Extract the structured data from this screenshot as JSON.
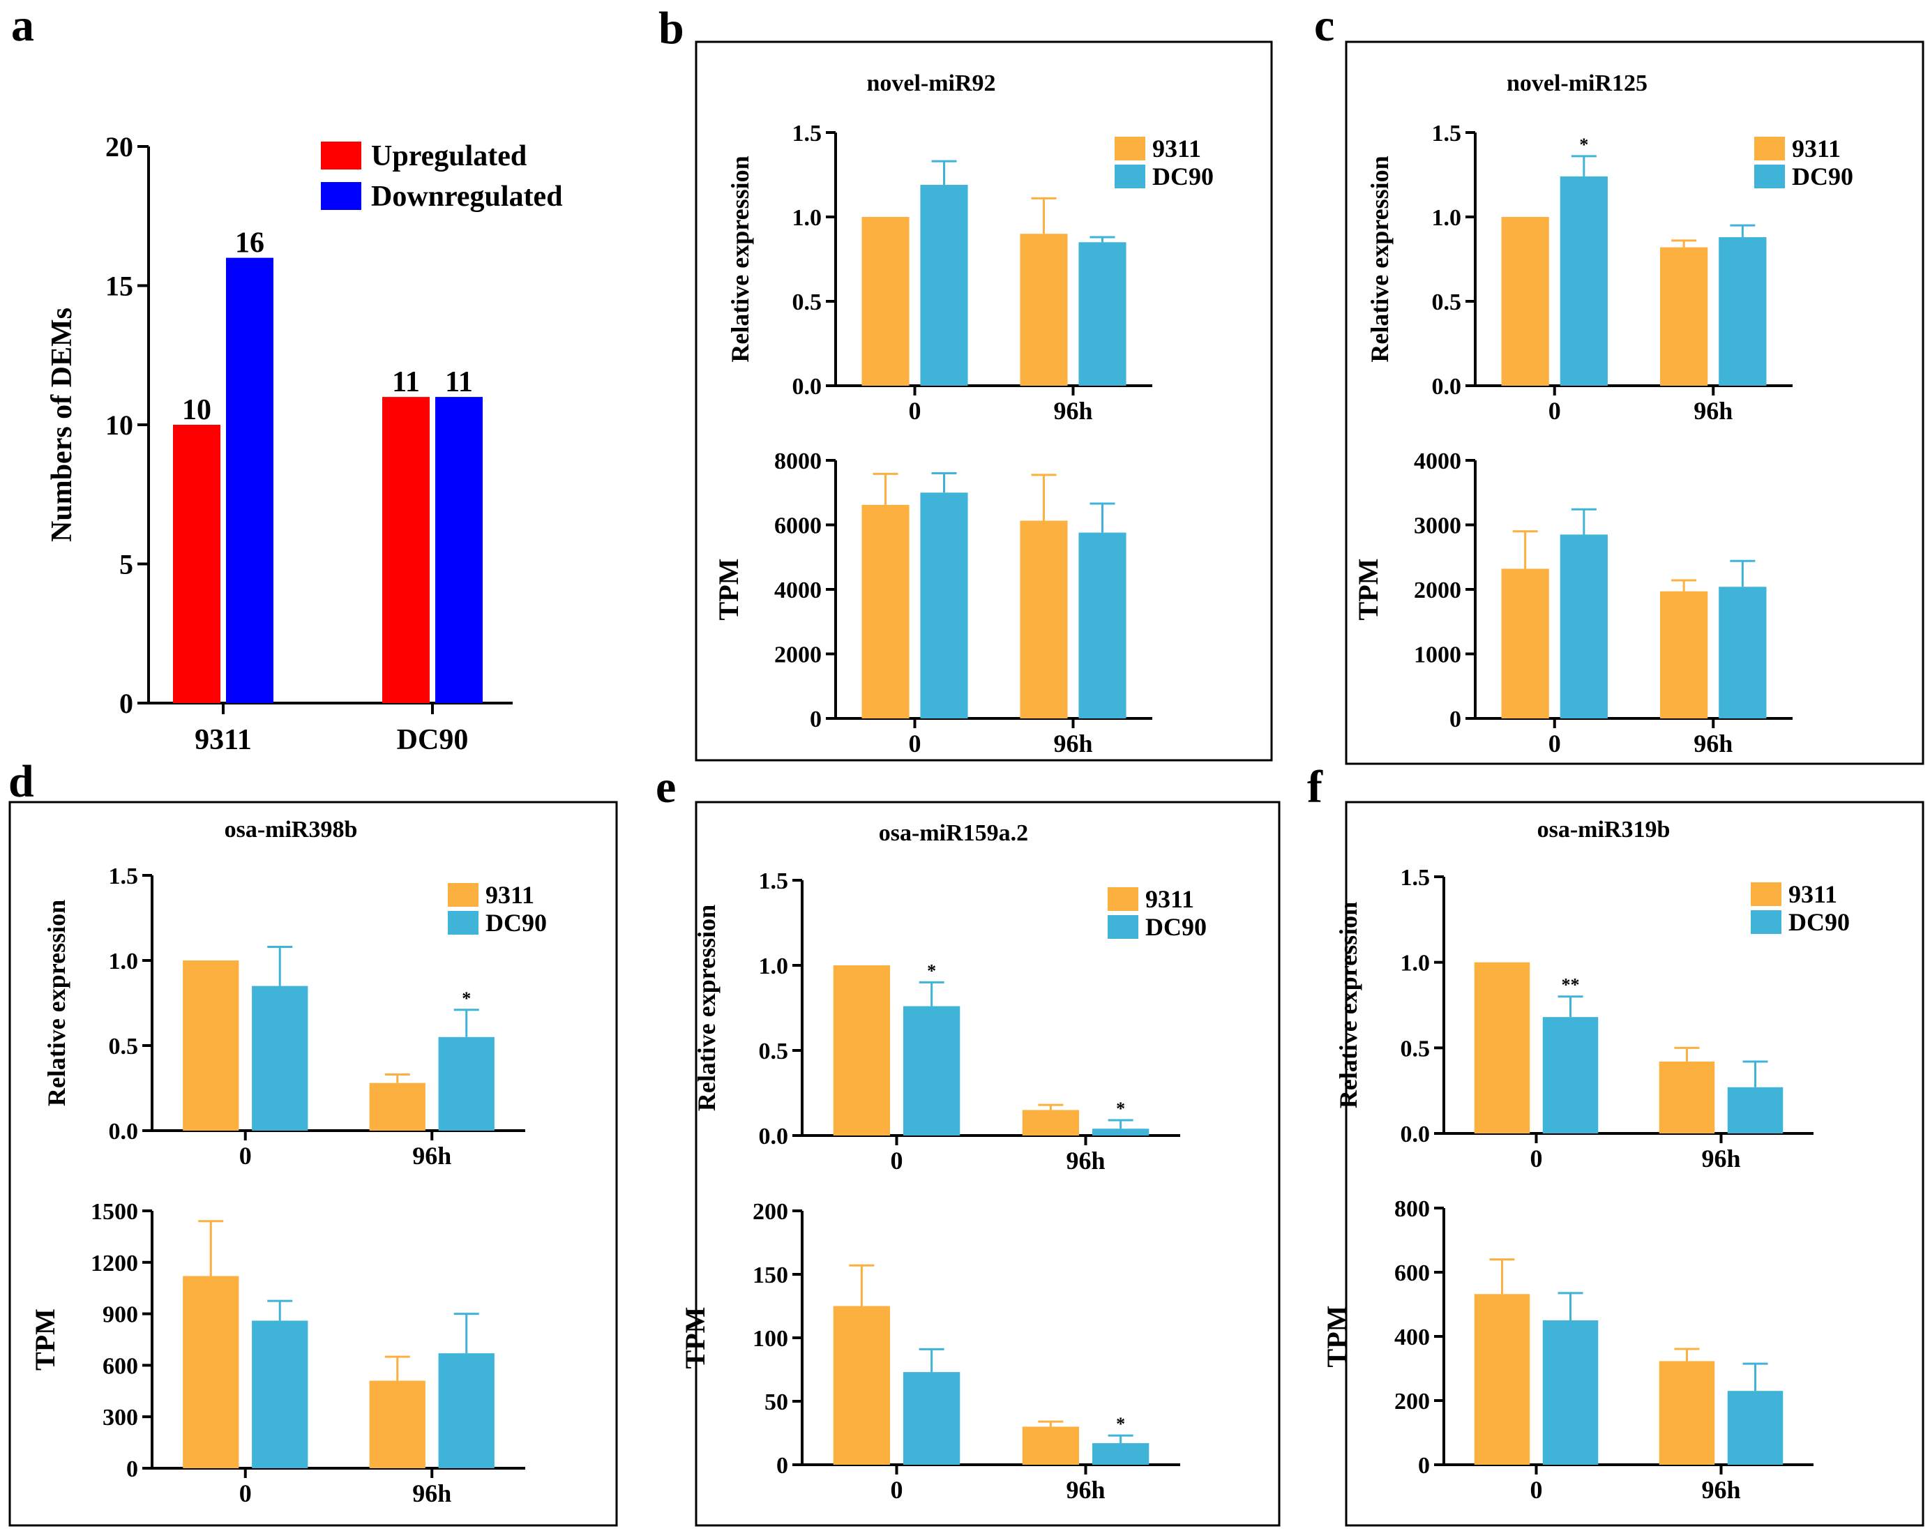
{
  "colors": {
    "up": "#FF0000",
    "down": "#0000FF",
    "s9311": "#FCB040",
    "dc90": "#3FB3D8",
    "axis": "#000000"
  },
  "chart_data": [
    {
      "panel": "a",
      "type": "bar",
      "title": "",
      "ylabel": "Numbers of DEMs",
      "categories": [
        "9311",
        "DC90"
      ],
      "series": [
        {
          "name": "Upregulated",
          "values": [
            10,
            11
          ],
          "color": "#FF0000"
        },
        {
          "name": "Downregulated",
          "values": [
            16,
            11
          ],
          "color": "#0000FF"
        }
      ],
      "ylim": [
        0,
        20
      ],
      "yticks": [
        "0",
        "5",
        "10",
        "15",
        "20"
      ],
      "data_labels": [
        [
          "10",
          "11"
        ],
        [
          "16",
          "11"
        ]
      ],
      "legend": "top-right"
    },
    {
      "panel": "b",
      "title": "novel-miR92",
      "subplots": [
        {
          "type": "bar",
          "ylabel": "Relative expression",
          "categories": [
            "0",
            "96h"
          ],
          "ylim": [
            0,
            1.5
          ],
          "yticks": [
            "0.0",
            "0.5",
            "1.0",
            "1.5"
          ],
          "series": [
            {
              "name": "9311",
              "values": [
                1.0,
                0.9
              ],
              "errors": [
                0,
                0.21
              ]
            },
            {
              "name": "DC90",
              "values": [
                1.19,
                0.85
              ],
              "errors": [
                0.14,
                0.03
              ]
            }
          ],
          "sig": [
            [
              "",
              ""
            ],
            [
              "",
              ""
            ]
          ],
          "legend": "top-right"
        },
        {
          "type": "bar",
          "ylabel": "TPM",
          "categories": [
            "0",
            "96h"
          ],
          "ylim": [
            0,
            8000
          ],
          "yticks": [
            "0",
            "2000",
            "4000",
            "6000",
            "8000"
          ],
          "series": [
            {
              "name": "9311",
              "values": [
                6620,
                6130
              ],
              "errors": [
                960,
                1420
              ]
            },
            {
              "name": "DC90",
              "values": [
                7000,
                5760
              ],
              "errors": [
                600,
                900
              ]
            }
          ],
          "sig": [
            [
              "",
              ""
            ],
            [
              "",
              ""
            ]
          ]
        }
      ]
    },
    {
      "panel": "c",
      "title": "novel-miR125",
      "subplots": [
        {
          "type": "bar",
          "ylabel": "Relative expression",
          "categories": [
            "0",
            "96h"
          ],
          "ylim": [
            0,
            1.5
          ],
          "yticks": [
            "0.0",
            "0.5",
            "1.0",
            "1.5"
          ],
          "series": [
            {
              "name": "9311",
              "values": [
                1.0,
                0.82
              ],
              "errors": [
                0,
                0.04
              ]
            },
            {
              "name": "DC90",
              "values": [
                1.24,
                0.88
              ],
              "errors": [
                0.12,
                0.07
              ]
            }
          ],
          "sig": [
            [
              "",
              ""
            ],
            [
              "*",
              ""
            ]
          ],
          "legend": "top-right"
        },
        {
          "type": "bar",
          "ylabel": "TPM",
          "categories": [
            "0",
            "96h"
          ],
          "ylim": [
            0,
            4000
          ],
          "yticks": [
            "0",
            "1000",
            "2000",
            "3000",
            "4000"
          ],
          "series": [
            {
              "name": "9311",
              "values": [
                2320,
                1970
              ],
              "errors": [
                580,
                170
              ]
            },
            {
              "name": "DC90",
              "values": [
                2850,
                2040
              ],
              "errors": [
                390,
                400
              ]
            }
          ],
          "sig": [
            [
              "",
              ""
            ],
            [
              "",
              ""
            ]
          ]
        }
      ]
    },
    {
      "panel": "d",
      "title": "osa-miR398b",
      "subplots": [
        {
          "type": "bar",
          "ylabel": "Relative expression",
          "categories": [
            "0",
            "96h"
          ],
          "ylim": [
            0,
            1.5
          ],
          "yticks": [
            "0.0",
            "0.5",
            "1.0",
            "1.5"
          ],
          "series": [
            {
              "name": "9311",
              "values": [
                1.0,
                0.28
              ],
              "errors": [
                0,
                0.05
              ]
            },
            {
              "name": "DC90",
              "values": [
                0.85,
                0.55
              ],
              "errors": [
                0.23,
                0.16
              ]
            }
          ],
          "sig": [
            [
              "",
              ""
            ],
            [
              "",
              "*"
            ]
          ],
          "legend": "top-right"
        },
        {
          "type": "bar",
          "ylabel": "TPM",
          "categories": [
            "0",
            "96h"
          ],
          "ylim": [
            0,
            1500
          ],
          "yticks": [
            "0",
            "300",
            "600",
            "900",
            "1200",
            "1500"
          ],
          "series": [
            {
              "name": "9311",
              "values": [
                1120,
                510
              ],
              "errors": [
                320,
                140
              ]
            },
            {
              "name": "DC90",
              "values": [
                860,
                670
              ],
              "errors": [
                115,
                230
              ]
            }
          ],
          "sig": [
            [
              "",
              ""
            ],
            [
              "",
              ""
            ]
          ]
        }
      ]
    },
    {
      "panel": "e",
      "title": "osa-miR159a.2",
      "subplots": [
        {
          "type": "bar",
          "ylabel": "Relative expression",
          "categories": [
            "0",
            "96h"
          ],
          "ylim": [
            0,
            1.5
          ],
          "yticks": [
            "0.0",
            "0.5",
            "1.0",
            "1.5"
          ],
          "series": [
            {
              "name": "9311",
              "values": [
                1.0,
                0.15
              ],
              "errors": [
                0,
                0.03
              ]
            },
            {
              "name": "DC90",
              "values": [
                0.76,
                0.04
              ],
              "errors": [
                0.14,
                0.05
              ]
            }
          ],
          "sig": [
            [
              "",
              ""
            ],
            [
              "*",
              "*"
            ]
          ],
          "legend": "top-right"
        },
        {
          "type": "bar",
          "ylabel": "TPM",
          "categories": [
            "0",
            "96h"
          ],
          "ylim": [
            0,
            200
          ],
          "yticks": [
            "0",
            "50",
            "100",
            "150",
            "200"
          ],
          "series": [
            {
              "name": "9311",
              "values": [
                125,
                30
              ],
              "errors": [
                32,
                4
              ]
            },
            {
              "name": "DC90",
              "values": [
                73,
                17
              ],
              "errors": [
                18,
                6
              ]
            }
          ],
          "sig": [
            [
              "",
              ""
            ],
            [
              "",
              "*"
            ]
          ]
        }
      ]
    },
    {
      "panel": "f",
      "title": "osa-miR319b",
      "subplots": [
        {
          "type": "bar",
          "ylabel": "Relative expression",
          "categories": [
            "0",
            "96h"
          ],
          "ylim": [
            0,
            1.5
          ],
          "yticks": [
            "0.0",
            "0.5",
            "1.0",
            "1.5"
          ],
          "series": [
            {
              "name": "9311",
              "values": [
                1.0,
                0.42
              ],
              "errors": [
                0,
                0.08
              ]
            },
            {
              "name": "DC90",
              "values": [
                0.68,
                0.27
              ],
              "errors": [
                0.12,
                0.15
              ]
            }
          ],
          "sig": [
            [
              "",
              ""
            ],
            [
              "**",
              ""
            ]
          ],
          "legend": "top-right"
        },
        {
          "type": "bar",
          "ylabel": "TPM",
          "categories": [
            "0",
            "96h"
          ],
          "ylim": [
            0,
            800
          ],
          "yticks": [
            "0",
            "200",
            "400",
            "600",
            "800"
          ],
          "series": [
            {
              "name": "9311",
              "values": [
                532,
                323
              ],
              "errors": [
                108,
                38
              ]
            },
            {
              "name": "DC90",
              "values": [
                450,
                230
              ],
              "errors": [
                85,
                85
              ]
            }
          ],
          "sig": [
            [
              "",
              ""
            ],
            [
              "",
              ""
            ]
          ]
        }
      ]
    }
  ],
  "panel_letters": [
    "a",
    "b",
    "c",
    "d",
    "e",
    "f"
  ]
}
